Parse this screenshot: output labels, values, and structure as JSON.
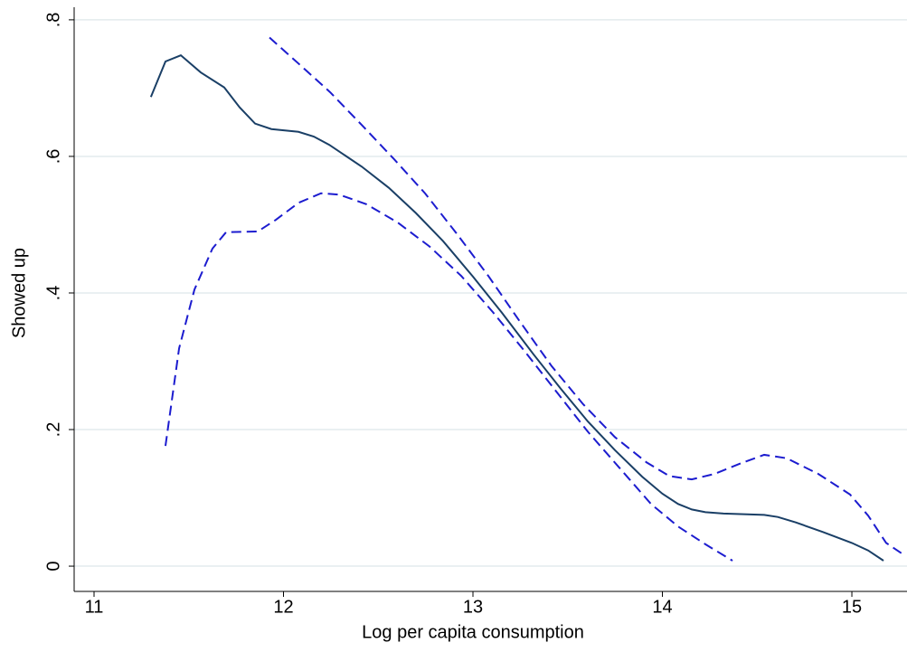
{
  "chart_data": {
    "type": "line",
    "x_label": "Log per capita consumption",
    "y_label": "Showed up",
    "xlim": [
      10.895,
      15.291
    ],
    "ylim": [
      -0.037,
      0.829
    ],
    "xticks": [
      11,
      12,
      13,
      14,
      15
    ],
    "yticks": [
      0,
      {
        "value": 0.2,
        "label": ".2"
      },
      {
        "value": 0.4,
        "label": ".4"
      },
      {
        "value": 0.6,
        "label": ".6"
      },
      {
        "value": 0.8,
        "label": ".8"
      }
    ],
    "grid": true,
    "series": [
      {
        "color": "#1a3f66",
        "style": "solid",
        "x": [
          11.3,
          11.377,
          11.458,
          11.563,
          11.687,
          11.768,
          11.85,
          11.936,
          12.079,
          12.16,
          12.241,
          12.413,
          12.556,
          12.699,
          12.842,
          13.0,
          13.153,
          13.32,
          13.463,
          13.606,
          13.749,
          13.893,
          14.0,
          14.083,
          14.155,
          14.227,
          14.322,
          14.537,
          14.609,
          14.704,
          14.847,
          15.0,
          15.086,
          15.167
        ],
        "values": [
          0.687,
          0.739,
          0.748,
          0.723,
          0.701,
          0.672,
          0.648,
          0.64,
          0.636,
          0.629,
          0.617,
          0.585,
          0.554,
          0.517,
          0.476,
          0.424,
          0.371,
          0.31,
          0.26,
          0.212,
          0.17,
          0.131,
          0.106,
          0.091,
          0.083,
          0.079,
          0.077,
          0.075,
          0.072,
          0.064,
          0.05,
          0.034,
          0.023,
          0.008
        ]
      },
      {
        "color": "#1c1ccf",
        "style": "dashed",
        "x": [
          11.926,
          12.103,
          12.246,
          12.413,
          12.58,
          12.747,
          12.914,
          13.081,
          13.248,
          13.415,
          13.582,
          13.749,
          13.916,
          14.036,
          14.155,
          14.274,
          14.418,
          14.537,
          14.656,
          14.823,
          14.99,
          15.086,
          15.181,
          15.277
        ],
        "values": [
          0.774,
          0.73,
          0.694,
          0.646,
          0.597,
          0.546,
          0.487,
          0.425,
          0.358,
          0.293,
          0.237,
          0.189,
          0.152,
          0.132,
          0.127,
          0.135,
          0.151,
          0.163,
          0.158,
          0.135,
          0.105,
          0.074,
          0.034,
          0.016
        ]
      },
      {
        "color": "#1c1ccf",
        "style": "dashed",
        "x": [
          11.377,
          11.449,
          11.53,
          11.625,
          11.697,
          11.864,
          11.959,
          12.079,
          12.198,
          12.294,
          12.437,
          12.604,
          12.771,
          12.938,
          13.105,
          13.272,
          13.439,
          13.606,
          13.773,
          13.94,
          14.083,
          14.227,
          14.37
        ],
        "values": [
          0.176,
          0.319,
          0.405,
          0.465,
          0.489,
          0.49,
          0.507,
          0.532,
          0.546,
          0.544,
          0.53,
          0.503,
          0.468,
          0.425,
          0.372,
          0.315,
          0.256,
          0.197,
          0.144,
          0.091,
          0.058,
          0.032,
          0.008
        ]
      }
    ]
  }
}
